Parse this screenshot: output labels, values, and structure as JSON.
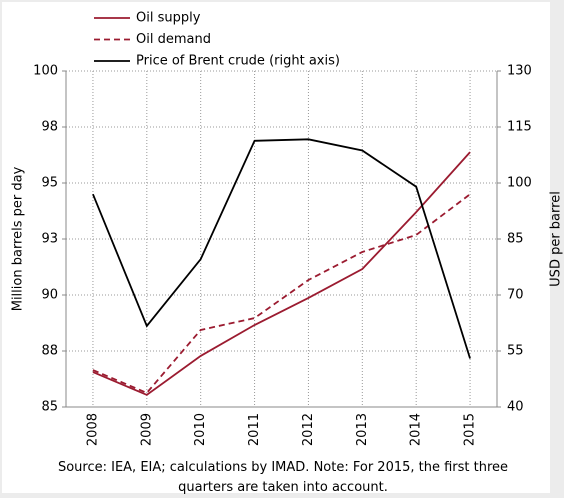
{
  "chart_data": {
    "type": "line",
    "y_label": "Million barrels per day",
    "y2_label": "USD per barrel",
    "note": "Source: IEA, EIA; calculations by IMAD. Note: For 2015, the first three quarters are taken into account.",
    "categories": [
      "2008",
      "2009",
      "2010",
      "2011",
      "2012",
      "2013",
      "2014",
      "2015"
    ],
    "series": [
      {
        "name": "Oil supply",
        "color": "#9b1b30",
        "dash": false,
        "values": [
          86.56,
          85.54,
          87.28,
          88.66,
          89.87,
          91.16,
          93.7,
          96.38
        ]
      },
      {
        "name": "Oil demand",
        "color": "#9b1b30",
        "dash": true,
        "values": [
          86.65,
          85.63,
          88.44,
          88.97,
          90.67,
          91.92,
          92.68,
          94.5
        ]
      },
      {
        "name": "Price of Brent crude (right axis)",
        "color": "#000000",
        "dash": false,
        "axis": "y2",
        "values": [
          97,
          61.7,
          79.6,
          111.3,
          111.7,
          108.7,
          99,
          53
        ]
      }
    ],
    "ylim": [
      85,
      100
    ],
    "yticks": [
      85,
      {
        "value": 87.5,
        "label": "88"
      },
      90,
      {
        "value": 92.5,
        "label": "93"
      },
      95,
      {
        "value": 97.5,
        "label": "98"
      },
      100
    ],
    "y2lim": [
      40,
      130
    ],
    "y2ticks": [
      40,
      55,
      70,
      85,
      100,
      115,
      130
    ],
    "grid": true
  }
}
